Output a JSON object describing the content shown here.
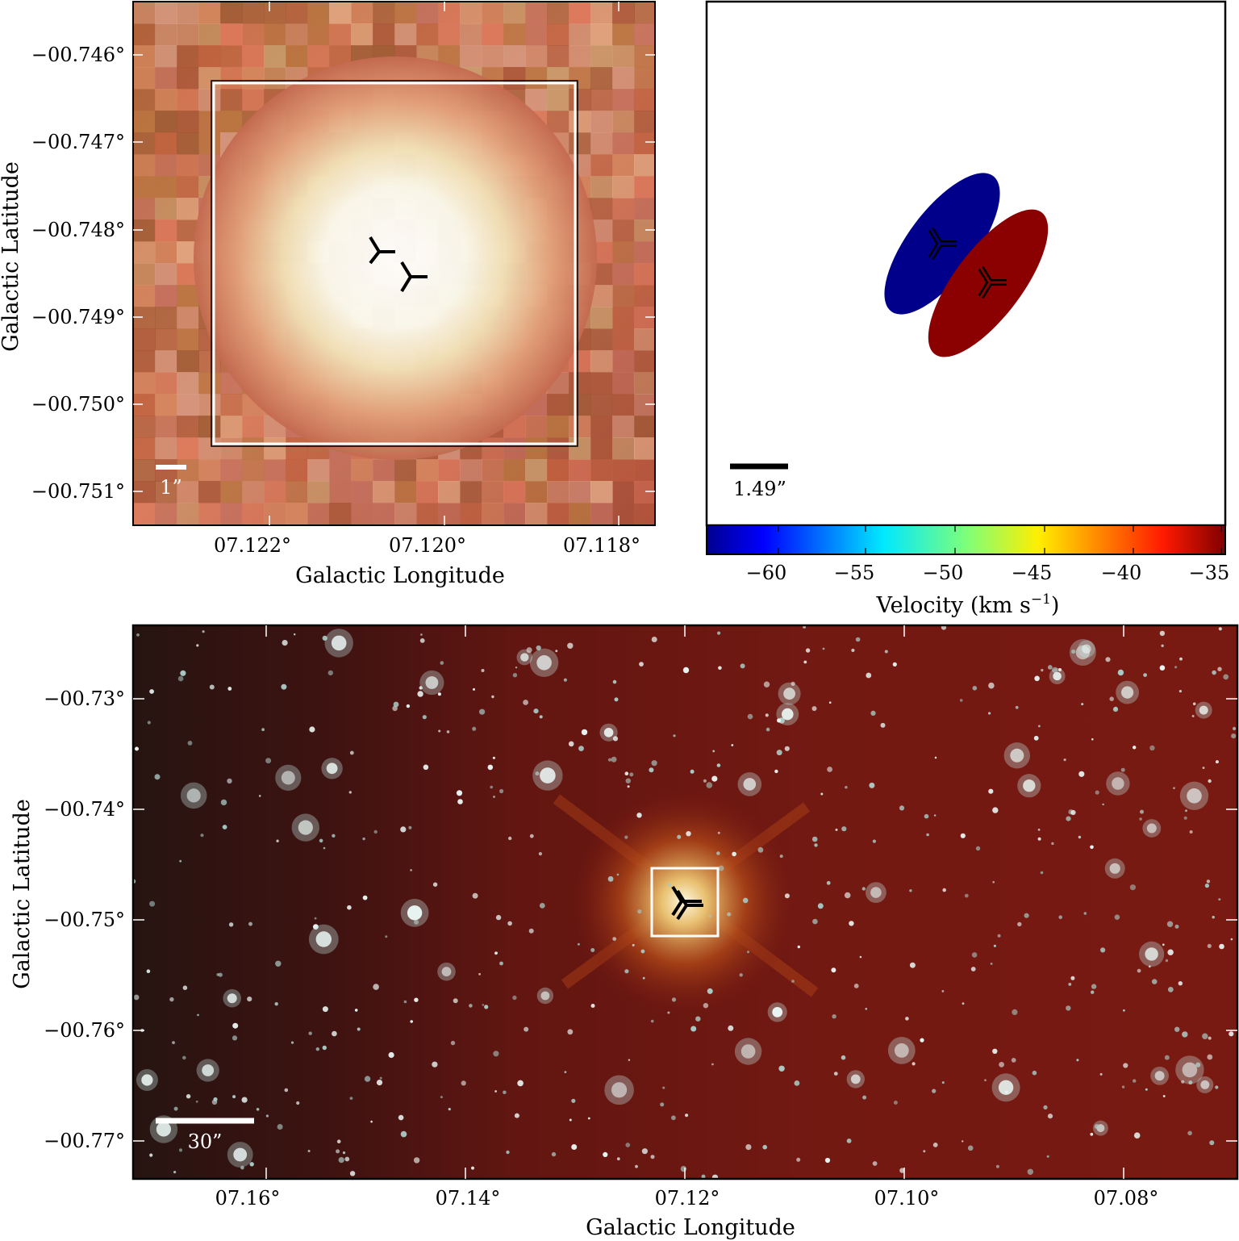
{
  "panels": {
    "zoom": {
      "x_ticks": [
        "07.122°",
        "07.120°",
        "07.118°"
      ],
      "y_ticks": [
        "−00.746°",
        "−00.747°",
        "−00.748°",
        "−00.749°",
        "−00.750°",
        "−00.751°"
      ],
      "xlabel": "Galactic Longitude",
      "ylabel": "Galactic Latitude",
      "scale_bar": "1”",
      "markers": 2
    },
    "velocity": {
      "scale_bar": "1.49”",
      "colorbar": {
        "ticks": [
          "−60",
          "−55",
          "−50",
          "−45",
          "−40",
          "−35"
        ],
        "range": [
          -63,
          -34
        ],
        "label": "Velocity (km s",
        "label_sup": "−1",
        "label_end": ")"
      },
      "components": [
        {
          "velocity": -62,
          "color": "#00008a"
        },
        {
          "velocity": -36,
          "color": "#8b0000"
        }
      ]
    },
    "wide": {
      "x_ticks": [
        "07.16°",
        "07.14°",
        "07.12°",
        "07.10°",
        "07.08°"
      ],
      "y_ticks": [
        "−00.73°",
        "−00.74°",
        "−00.75°",
        "−00.76°",
        "−00.77°"
      ],
      "xlabel": "Galactic Longitude",
      "ylabel": "Galactic Latitude",
      "scale_bar": "30”"
    }
  },
  "colors": {
    "nebula": "#7a1a12",
    "star": "#e8f4f4",
    "blue_component": "#00008a",
    "red_component": "#8b0000"
  }
}
